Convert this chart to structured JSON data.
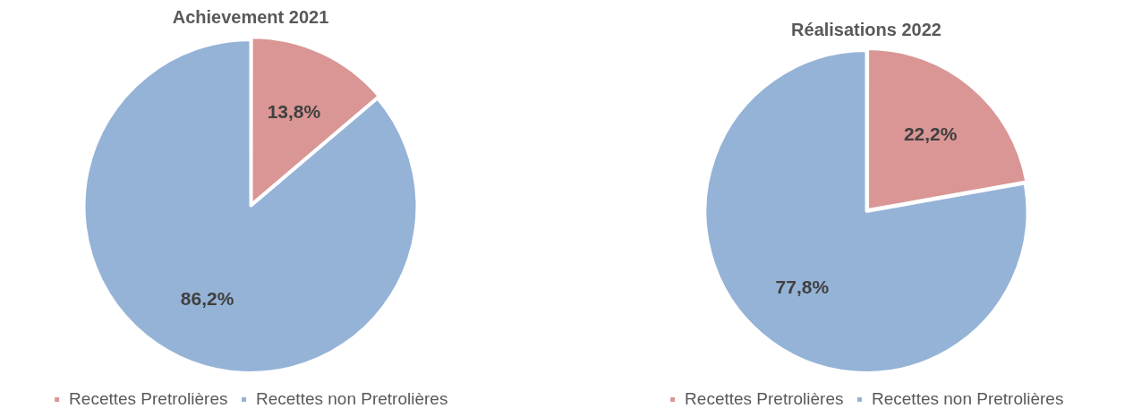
{
  "chart_data": [
    {
      "type": "pie",
      "title": "Achievement 2021",
      "categories": [
        "Recettes Pretrolières",
        "Recettes non Pretrolières"
      ],
      "values": [
        13.8,
        86.2
      ],
      "colors": [
        "#d99694",
        "#95b3d7"
      ],
      "value_labels": [
        "13,8%",
        "86,2%"
      ],
      "legend": "bottom"
    },
    {
      "type": "pie",
      "title": "Réalisations 2022",
      "categories": [
        "Recettes Pretrolières",
        "Recettes non Pretrolières"
      ],
      "values": [
        22.2,
        77.8
      ],
      "colors": [
        "#d99694",
        "#95b3d7"
      ],
      "value_labels": [
        "22,2%",
        "77,8%"
      ],
      "legend": "bottom"
    }
  ]
}
